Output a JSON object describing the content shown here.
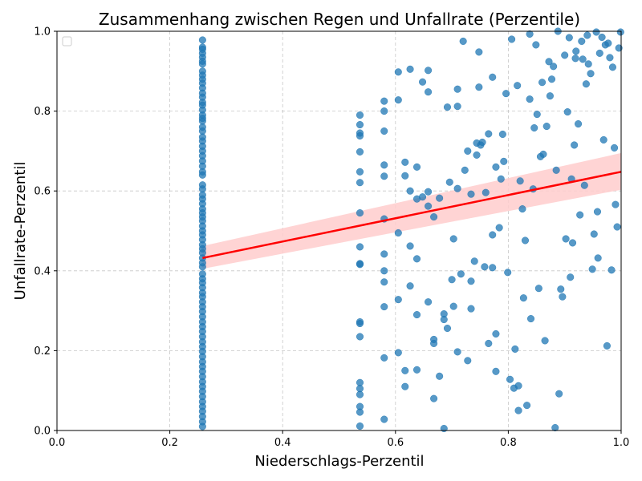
{
  "chart_data": {
    "type": "scatter",
    "title": "Zusammenhang zwischen Regen und Unfallrate (Perzentile)",
    "xlabel": "Niederschlags-Perzentil",
    "ylabel": "Unfallrate-Perzentil",
    "xlim": [
      0,
      1
    ],
    "ylim": [
      0,
      1
    ],
    "xticks": [
      0.0,
      0.2,
      0.4,
      0.6,
      0.8,
      1.0
    ],
    "yticks": [
      0.0,
      0.2,
      0.4,
      0.6,
      0.8,
      1.0
    ],
    "xtick_labels": [
      "0.0",
      "0.2",
      "0.4",
      "0.6",
      "0.8",
      "1.0"
    ],
    "ytick_labels": [
      "0.0",
      "0.2",
      "0.4",
      "0.6",
      "0.8",
      "1.0"
    ],
    "grid": true,
    "legend": "top-left (empty)",
    "colors": {
      "points": "#1f77b4",
      "regression": "#ff0000",
      "confidence_band": "#ffcccc",
      "grid": "#b0b0b0"
    },
    "regression": {
      "x": [
        0.258,
        1.0
      ],
      "y": [
        0.432,
        0.648
      ],
      "ci_low": [
        0.405,
        0.603
      ],
      "ci_high": [
        0.462,
        0.695
      ]
    },
    "series": [
      {
        "points": [
          [
            0.258,
            0.978
          ],
          [
            0.258,
            0.96
          ],
          [
            0.258,
            0.955
          ],
          [
            0.258,
            0.945
          ],
          [
            0.258,
            0.935
          ],
          [
            0.258,
            0.925
          ],
          [
            0.258,
            0.918
          ],
          [
            0.258,
            0.9
          ],
          [
            0.258,
            0.89
          ],
          [
            0.258,
            0.88
          ],
          [
            0.258,
            0.87
          ],
          [
            0.258,
            0.858
          ],
          [
            0.258,
            0.845
          ],
          [
            0.258,
            0.835
          ],
          [
            0.258,
            0.822
          ],
          [
            0.258,
            0.815
          ],
          [
            0.258,
            0.803
          ],
          [
            0.258,
            0.79
          ],
          [
            0.258,
            0.782
          ],
          [
            0.258,
            0.775
          ],
          [
            0.258,
            0.76
          ],
          [
            0.258,
            0.75
          ],
          [
            0.258,
            0.735
          ],
          [
            0.258,
            0.725
          ],
          [
            0.258,
            0.712
          ],
          [
            0.258,
            0.7
          ],
          [
            0.258,
            0.688
          ],
          [
            0.258,
            0.675
          ],
          [
            0.258,
            0.662
          ],
          [
            0.258,
            0.648
          ],
          [
            0.258,
            0.64
          ],
          [
            0.258,
            0.615
          ],
          [
            0.258,
            0.605
          ],
          [
            0.258,
            0.59
          ],
          [
            0.258,
            0.58
          ],
          [
            0.258,
            0.568
          ],
          [
            0.258,
            0.555
          ],
          [
            0.258,
            0.545
          ],
          [
            0.258,
            0.535
          ],
          [
            0.258,
            0.525
          ],
          [
            0.258,
            0.512
          ],
          [
            0.258,
            0.5
          ],
          [
            0.258,
            0.49
          ],
          [
            0.258,
            0.478
          ],
          [
            0.258,
            0.465
          ],
          [
            0.258,
            0.455
          ],
          [
            0.258,
            0.445
          ],
          [
            0.258,
            0.432
          ],
          [
            0.258,
            0.42
          ],
          [
            0.258,
            0.41
          ],
          [
            0.258,
            0.392
          ],
          [
            0.258,
            0.38
          ],
          [
            0.258,
            0.37
          ],
          [
            0.258,
            0.358
          ],
          [
            0.258,
            0.345
          ],
          [
            0.258,
            0.335
          ],
          [
            0.258,
            0.322
          ],
          [
            0.258,
            0.31
          ],
          [
            0.258,
            0.298
          ],
          [
            0.258,
            0.285
          ],
          [
            0.258,
            0.272
          ],
          [
            0.258,
            0.26
          ],
          [
            0.258,
            0.248
          ],
          [
            0.258,
            0.235
          ],
          [
            0.258,
            0.222
          ],
          [
            0.258,
            0.21
          ],
          [
            0.258,
            0.198
          ],
          [
            0.258,
            0.185
          ],
          [
            0.258,
            0.172
          ],
          [
            0.258,
            0.16
          ],
          [
            0.258,
            0.148
          ],
          [
            0.258,
            0.135
          ],
          [
            0.258,
            0.122
          ],
          [
            0.258,
            0.11
          ],
          [
            0.258,
            0.098
          ],
          [
            0.258,
            0.085
          ],
          [
            0.258,
            0.072
          ],
          [
            0.258,
            0.06
          ],
          [
            0.258,
            0.048
          ],
          [
            0.258,
            0.035
          ],
          [
            0.258,
            0.022
          ],
          [
            0.258,
            0.01
          ],
          [
            0.537,
            0.79
          ],
          [
            0.537,
            0.766
          ],
          [
            0.537,
            0.745
          ],
          [
            0.537,
            0.738
          ],
          [
            0.537,
            0.698
          ],
          [
            0.537,
            0.648
          ],
          [
            0.537,
            0.621
          ],
          [
            0.537,
            0.545
          ],
          [
            0.537,
            0.46
          ],
          [
            0.537,
            0.418
          ],
          [
            0.537,
            0.416
          ],
          [
            0.537,
            0.272
          ],
          [
            0.537,
            0.268
          ],
          [
            0.537,
            0.235
          ],
          [
            0.537,
            0.12
          ],
          [
            0.537,
            0.105
          ],
          [
            0.537,
            0.09
          ],
          [
            0.537,
            0.06
          ],
          [
            0.537,
            0.046
          ],
          [
            0.537,
            0.011
          ],
          [
            0.58,
            0.825
          ],
          [
            0.58,
            0.8
          ],
          [
            0.58,
            0.75
          ],
          [
            0.58,
            0.665
          ],
          [
            0.58,
            0.637
          ],
          [
            0.58,
            0.53
          ],
          [
            0.58,
            0.442
          ],
          [
            0.58,
            0.4
          ],
          [
            0.58,
            0.372
          ],
          [
            0.58,
            0.31
          ],
          [
            0.58,
            0.182
          ],
          [
            0.58,
            0.028
          ],
          [
            0.605,
            0.898
          ],
          [
            0.605,
            0.828
          ],
          [
            0.605,
            0.495
          ],
          [
            0.605,
            0.328
          ],
          [
            0.605,
            0.195
          ],
          [
            0.617,
            0.672
          ],
          [
            0.617,
            0.638
          ],
          [
            0.617,
            0.15
          ],
          [
            0.617,
            0.11
          ],
          [
            0.626,
            0.905
          ],
          [
            0.626,
            0.6
          ],
          [
            0.626,
            0.462
          ],
          [
            0.626,
            0.362
          ],
          [
            0.638,
            0.66
          ],
          [
            0.638,
            0.58
          ],
          [
            0.638,
            0.43
          ],
          [
            0.638,
            0.29
          ],
          [
            0.638,
            0.152
          ],
          [
            0.648,
            0.873
          ],
          [
            0.648,
            0.585
          ],
          [
            0.658,
            0.902
          ],
          [
            0.658,
            0.848
          ],
          [
            0.658,
            0.598
          ],
          [
            0.658,
            0.562
          ],
          [
            0.658,
            0.322
          ],
          [
            0.668,
            0.535
          ],
          [
            0.668,
            0.228
          ],
          [
            0.668,
            0.218
          ],
          [
            0.668,
            0.08
          ],
          [
            0.678,
            0.582
          ],
          [
            0.678,
            0.136
          ],
          [
            0.686,
            0.292
          ],
          [
            0.686,
            0.278
          ],
          [
            0.686,
            0.005
          ],
          [
            0.692,
            0.81
          ],
          [
            0.692,
            0.256
          ],
          [
            0.696,
            0.622
          ],
          [
            0.7,
            0.378
          ],
          [
            0.703,
            0.48
          ],
          [
            0.703,
            0.311
          ],
          [
            0.71,
            0.855
          ],
          [
            0.71,
            0.812
          ],
          [
            0.71,
            0.606
          ],
          [
            0.71,
            0.197
          ],
          [
            0.716,
            0.392
          ],
          [
            0.72,
            0.975
          ],
          [
            0.723,
            0.652
          ],
          [
            0.728,
            0.7
          ],
          [
            0.728,
            0.175
          ],
          [
            0.734,
            0.592
          ],
          [
            0.734,
            0.374
          ],
          [
            0.734,
            0.305
          ],
          [
            0.74,
            0.424
          ],
          [
            0.744,
            0.72
          ],
          [
            0.744,
            0.69
          ],
          [
            0.748,
            0.948
          ],
          [
            0.748,
            0.86
          ],
          [
            0.751,
            0.715
          ],
          [
            0.754,
            0.722
          ],
          [
            0.758,
            0.41
          ],
          [
            0.76,
            0.596
          ],
          [
            0.765,
            0.743
          ],
          [
            0.765,
            0.218
          ],
          [
            0.772,
            0.885
          ],
          [
            0.772,
            0.49
          ],
          [
            0.772,
            0.408
          ],
          [
            0.778,
            0.66
          ],
          [
            0.778,
            0.242
          ],
          [
            0.778,
            0.148
          ],
          [
            0.784,
            0.508
          ],
          [
            0.787,
            0.63
          ],
          [
            0.79,
            0.742
          ],
          [
            0.792,
            0.674
          ],
          [
            0.796,
            0.844
          ],
          [
            0.799,
            0.396
          ],
          [
            0.803,
            0.128
          ],
          [
            0.806,
            0.98
          ],
          [
            0.81,
            0.106
          ],
          [
            0.812,
            0.204
          ],
          [
            0.816,
            0.864
          ],
          [
            0.818,
            0.05
          ],
          [
            0.818,
            0.112
          ],
          [
            0.821,
            0.625
          ],
          [
            0.825,
            0.555
          ],
          [
            0.827,
            0.332
          ],
          [
            0.83,
            0.476
          ],
          [
            0.833,
            0.063
          ],
          [
            0.838,
            0.993
          ],
          [
            0.838,
            0.83
          ],
          [
            0.84,
            0.28
          ],
          [
            0.844,
            0.605
          ],
          [
            0.846,
            0.758
          ],
          [
            0.849,
            0.966
          ],
          [
            0.851,
            0.792
          ],
          [
            0.854,
            0.356
          ],
          [
            0.857,
            0.686
          ],
          [
            0.86,
            0.872
          ],
          [
            0.862,
            0.692
          ],
          [
            0.865,
            0.225
          ],
          [
            0.868,
            0.762
          ],
          [
            0.872,
            0.924
          ],
          [
            0.874,
            0.838
          ],
          [
            0.877,
            0.88
          ],
          [
            0.88,
            0.912
          ],
          [
            0.883,
            0.007
          ],
          [
            0.885,
            0.652
          ],
          [
            0.888,
            1.0
          ],
          [
            0.89,
            0.092
          ],
          [
            0.893,
            0.354
          ],
          [
            0.896,
            0.335
          ],
          [
            0.9,
            0.94
          ],
          [
            0.902,
            0.48
          ],
          [
            0.905,
            0.798
          ],
          [
            0.908,
            0.984
          ],
          [
            0.91,
            0.384
          ],
          [
            0.912,
            0.63
          ],
          [
            0.914,
            0.47
          ],
          [
            0.917,
            0.715
          ],
          [
            0.919,
            0.932
          ],
          [
            0.92,
            0.95
          ],
          [
            0.924,
            0.768
          ],
          [
            0.927,
            0.54
          ],
          [
            0.93,
            0.975
          ],
          [
            0.932,
            0.93
          ],
          [
            0.935,
            0.614
          ],
          [
            0.938,
            0.868
          ],
          [
            0.94,
            0.99
          ],
          [
            0.942,
            0.918
          ],
          [
            0.946,
            0.894
          ],
          [
            0.949,
            0.404
          ],
          [
            0.952,
            0.492
          ],
          [
            0.956,
            0.998
          ],
          [
            0.958,
            0.548
          ],
          [
            0.959,
            0.432
          ],
          [
            0.962,
            0.945
          ],
          [
            0.966,
            0.985
          ],
          [
            0.969,
            0.728
          ],
          [
            0.972,
            0.966
          ],
          [
            0.975,
            0.212
          ],
          [
            0.977,
            0.97
          ],
          [
            0.98,
            0.934
          ],
          [
            0.983,
            0.402
          ],
          [
            0.985,
            0.91
          ],
          [
            0.988,
            0.708
          ],
          [
            0.99,
            0.566
          ],
          [
            0.993,
            0.51
          ],
          [
            0.996,
            0.958
          ],
          [
            0.999,
            0.998
          ]
        ]
      }
    ]
  }
}
